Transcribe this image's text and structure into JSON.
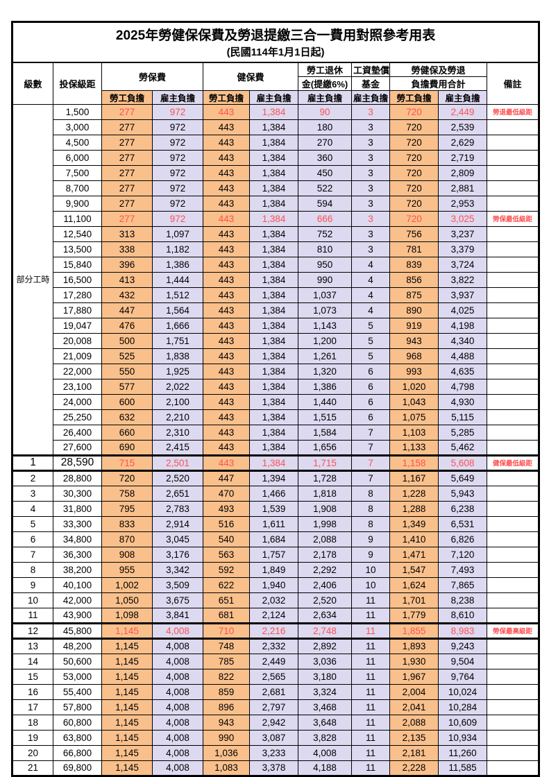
{
  "title": "2025年勞健保保費及勞退提繳三合一費用對照參考用表",
  "subtitle": "(民國114年1月1日起)",
  "colors": {
    "employee_bg": "#F9C08C",
    "employer_bg": "#DCD9F0",
    "highlight_red": "#FF5050"
  },
  "header": {
    "level": "級數",
    "bracket": "投保級距",
    "labor_insurance": "勞保費",
    "health_insurance": "健保費",
    "pension_line1": "勞工退休",
    "pension_line2": "金(提繳6%)",
    "wage_fund_line1": "工資墊償",
    "wage_fund_line2": "基金",
    "total_line1": "勞健保及勞退",
    "total_line2": "負擔費用合計",
    "remark": "備註",
    "employee": "勞工負擔",
    "employer": "雇主負擔"
  },
  "part_time_label": "部分工時",
  "part_time_rowspan": 23,
  "rows": [
    {
      "level": "",
      "bracket": "1,500",
      "cells": [
        "277",
        "972",
        "443",
        "1,384",
        "90",
        "3",
        "720",
        "2,449"
      ],
      "remark": "勞退最低級距",
      "red": true
    },
    {
      "level": "",
      "bracket": "3,000",
      "cells": [
        "277",
        "972",
        "443",
        "1,384",
        "180",
        "3",
        "720",
        "2,539"
      ],
      "remark": ""
    },
    {
      "level": "",
      "bracket": "4,500",
      "cells": [
        "277",
        "972",
        "443",
        "1,384",
        "270",
        "3",
        "720",
        "2,629"
      ],
      "remark": ""
    },
    {
      "level": "",
      "bracket": "6,000",
      "cells": [
        "277",
        "972",
        "443",
        "1,384",
        "360",
        "3",
        "720",
        "2,719"
      ],
      "remark": ""
    },
    {
      "level": "",
      "bracket": "7,500",
      "cells": [
        "277",
        "972",
        "443",
        "1,384",
        "450",
        "3",
        "720",
        "2,809"
      ],
      "remark": ""
    },
    {
      "level": "",
      "bracket": "8,700",
      "cells": [
        "277",
        "972",
        "443",
        "1,384",
        "522",
        "3",
        "720",
        "2,881"
      ],
      "remark": ""
    },
    {
      "level": "",
      "bracket": "9,900",
      "cells": [
        "277",
        "972",
        "443",
        "1,384",
        "594",
        "3",
        "720",
        "2,953"
      ],
      "remark": ""
    },
    {
      "level": "",
      "bracket": "11,100",
      "cells": [
        "277",
        "972",
        "443",
        "1,384",
        "666",
        "3",
        "720",
        "3,025"
      ],
      "remark": "勞保最低級距",
      "red": true
    },
    {
      "level": "",
      "bracket": "12,540",
      "cells": [
        "313",
        "1,097",
        "443",
        "1,384",
        "752",
        "3",
        "756",
        "3,237"
      ],
      "remark": ""
    },
    {
      "level": "",
      "bracket": "13,500",
      "cells": [
        "338",
        "1,182",
        "443",
        "1,384",
        "810",
        "3",
        "781",
        "3,379"
      ],
      "remark": ""
    },
    {
      "level": "",
      "bracket": "15,840",
      "cells": [
        "396",
        "1,386",
        "443",
        "1,384",
        "950",
        "4",
        "839",
        "3,724"
      ],
      "remark": ""
    },
    {
      "level": "",
      "bracket": "16,500",
      "cells": [
        "413",
        "1,444",
        "443",
        "1,384",
        "990",
        "4",
        "856",
        "3,822"
      ],
      "remark": ""
    },
    {
      "level": "",
      "bracket": "17,280",
      "cells": [
        "432",
        "1,512",
        "443",
        "1,384",
        "1,037",
        "4",
        "875",
        "3,937"
      ],
      "remark": ""
    },
    {
      "level": "",
      "bracket": "17,880",
      "cells": [
        "447",
        "1,564",
        "443",
        "1,384",
        "1,073",
        "4",
        "890",
        "4,025"
      ],
      "remark": ""
    },
    {
      "level": "",
      "bracket": "19,047",
      "cells": [
        "476",
        "1,666",
        "443",
        "1,384",
        "1,143",
        "5",
        "919",
        "4,198"
      ],
      "remark": ""
    },
    {
      "level": "",
      "bracket": "20,008",
      "cells": [
        "500",
        "1,751",
        "443",
        "1,384",
        "1,200",
        "5",
        "943",
        "4,340"
      ],
      "remark": ""
    },
    {
      "level": "",
      "bracket": "21,009",
      "cells": [
        "525",
        "1,838",
        "443",
        "1,384",
        "1,261",
        "5",
        "968",
        "4,488"
      ],
      "remark": ""
    },
    {
      "level": "",
      "bracket": "22,000",
      "cells": [
        "550",
        "1,925",
        "443",
        "1,384",
        "1,320",
        "6",
        "993",
        "4,635"
      ],
      "remark": ""
    },
    {
      "level": "",
      "bracket": "23,100",
      "cells": [
        "577",
        "2,022",
        "443",
        "1,384",
        "1,386",
        "6",
        "1,020",
        "4,798"
      ],
      "remark": ""
    },
    {
      "level": "",
      "bracket": "24,000",
      "cells": [
        "600",
        "2,100",
        "443",
        "1,384",
        "1,440",
        "6",
        "1,043",
        "4,930"
      ],
      "remark": ""
    },
    {
      "level": "",
      "bracket": "25,250",
      "cells": [
        "632",
        "2,210",
        "443",
        "1,384",
        "1,515",
        "6",
        "1,075",
        "5,115"
      ],
      "remark": ""
    },
    {
      "level": "",
      "bracket": "26,400",
      "cells": [
        "660",
        "2,310",
        "443",
        "1,384",
        "1,584",
        "7",
        "1,103",
        "5,285"
      ],
      "remark": ""
    },
    {
      "level": "",
      "bracket": "27,600",
      "cells": [
        "690",
        "2,415",
        "443",
        "1,384",
        "1,656",
        "7",
        "1,133",
        "5,462"
      ],
      "remark": ""
    },
    {
      "level": "1",
      "bracket": "28,590",
      "cells": [
        "715",
        "2,501",
        "443",
        "1,384",
        "1,715",
        "7",
        "1,158",
        "5,608"
      ],
      "remark": "健保最低級距",
      "red": true,
      "thick_top": true,
      "thick_bottom": true,
      "big": true
    },
    {
      "level": "2",
      "bracket": "28,800",
      "cells": [
        "720",
        "2,520",
        "447",
        "1,394",
        "1,728",
        "7",
        "1,167",
        "5,649"
      ],
      "remark": ""
    },
    {
      "level": "3",
      "bracket": "30,300",
      "cells": [
        "758",
        "2,651",
        "470",
        "1,466",
        "1,818",
        "8",
        "1,228",
        "5,943"
      ],
      "remark": ""
    },
    {
      "level": "4",
      "bracket": "31,800",
      "cells": [
        "795",
        "2,783",
        "493",
        "1,539",
        "1,908",
        "8",
        "1,288",
        "6,238"
      ],
      "remark": ""
    },
    {
      "level": "5",
      "bracket": "33,300",
      "cells": [
        "833",
        "2,914",
        "516",
        "1,611",
        "1,998",
        "8",
        "1,349",
        "6,531"
      ],
      "remark": ""
    },
    {
      "level": "6",
      "bracket": "34,800",
      "cells": [
        "870",
        "3,045",
        "540",
        "1,684",
        "2,088",
        "9",
        "1,410",
        "6,826"
      ],
      "remark": ""
    },
    {
      "level": "7",
      "bracket": "36,300",
      "cells": [
        "908",
        "3,176",
        "563",
        "1,757",
        "2,178",
        "9",
        "1,471",
        "7,120"
      ],
      "remark": ""
    },
    {
      "level": "8",
      "bracket": "38,200",
      "cells": [
        "955",
        "3,342",
        "592",
        "1,849",
        "2,292",
        "10",
        "1,547",
        "7,493"
      ],
      "remark": ""
    },
    {
      "level": "9",
      "bracket": "40,100",
      "cells": [
        "1,002",
        "3,509",
        "622",
        "1,940",
        "2,406",
        "10",
        "1,624",
        "7,865"
      ],
      "remark": ""
    },
    {
      "level": "10",
      "bracket": "42,000",
      "cells": [
        "1,050",
        "3,675",
        "651",
        "2,032",
        "2,520",
        "11",
        "1,701",
        "8,238"
      ],
      "remark": ""
    },
    {
      "level": "11",
      "bracket": "43,900",
      "cells": [
        "1,098",
        "3,841",
        "681",
        "2,124",
        "2,634",
        "11",
        "1,779",
        "8,610"
      ],
      "remark": ""
    },
    {
      "level": "12",
      "bracket": "45,800",
      "cells": [
        "1,145",
        "4,008",
        "710",
        "2,216",
        "2,748",
        "11",
        "1,855",
        "8,983"
      ],
      "remark": "勞保最高級距",
      "red": true,
      "thick_top": true,
      "thick_bottom": true
    },
    {
      "level": "13",
      "bracket": "48,200",
      "cells": [
        "1,145",
        "4,008",
        "748",
        "2,332",
        "2,892",
        "11",
        "1,893",
        "9,243"
      ],
      "remark": ""
    },
    {
      "level": "14",
      "bracket": "50,600",
      "cells": [
        "1,145",
        "4,008",
        "785",
        "2,449",
        "3,036",
        "11",
        "1,930",
        "9,504"
      ],
      "remark": ""
    },
    {
      "level": "15",
      "bracket": "53,000",
      "cells": [
        "1,145",
        "4,008",
        "822",
        "2,565",
        "3,180",
        "11",
        "1,967",
        "9,764"
      ],
      "remark": ""
    },
    {
      "level": "16",
      "bracket": "55,400",
      "cells": [
        "1,145",
        "4,008",
        "859",
        "2,681",
        "3,324",
        "11",
        "2,004",
        "10,024"
      ],
      "remark": ""
    },
    {
      "level": "17",
      "bracket": "57,800",
      "cells": [
        "1,145",
        "4,008",
        "896",
        "2,797",
        "3,468",
        "11",
        "2,041",
        "10,284"
      ],
      "remark": ""
    },
    {
      "level": "18",
      "bracket": "60,800",
      "cells": [
        "1,145",
        "4,008",
        "943",
        "2,942",
        "3,648",
        "11",
        "2,088",
        "10,609"
      ],
      "remark": ""
    },
    {
      "level": "19",
      "bracket": "63,800",
      "cells": [
        "1,145",
        "4,008",
        "990",
        "3,087",
        "3,828",
        "11",
        "2,135",
        "10,934"
      ],
      "remark": ""
    },
    {
      "level": "20",
      "bracket": "66,800",
      "cells": [
        "1,145",
        "4,008",
        "1,036",
        "3,233",
        "4,008",
        "11",
        "2,181",
        "11,260"
      ],
      "remark": ""
    },
    {
      "level": "21",
      "bracket": "69,800",
      "cells": [
        "1,145",
        "4,008",
        "1,083",
        "3,378",
        "4,188",
        "11",
        "2,228",
        "11,585"
      ],
      "remark": ""
    }
  ]
}
